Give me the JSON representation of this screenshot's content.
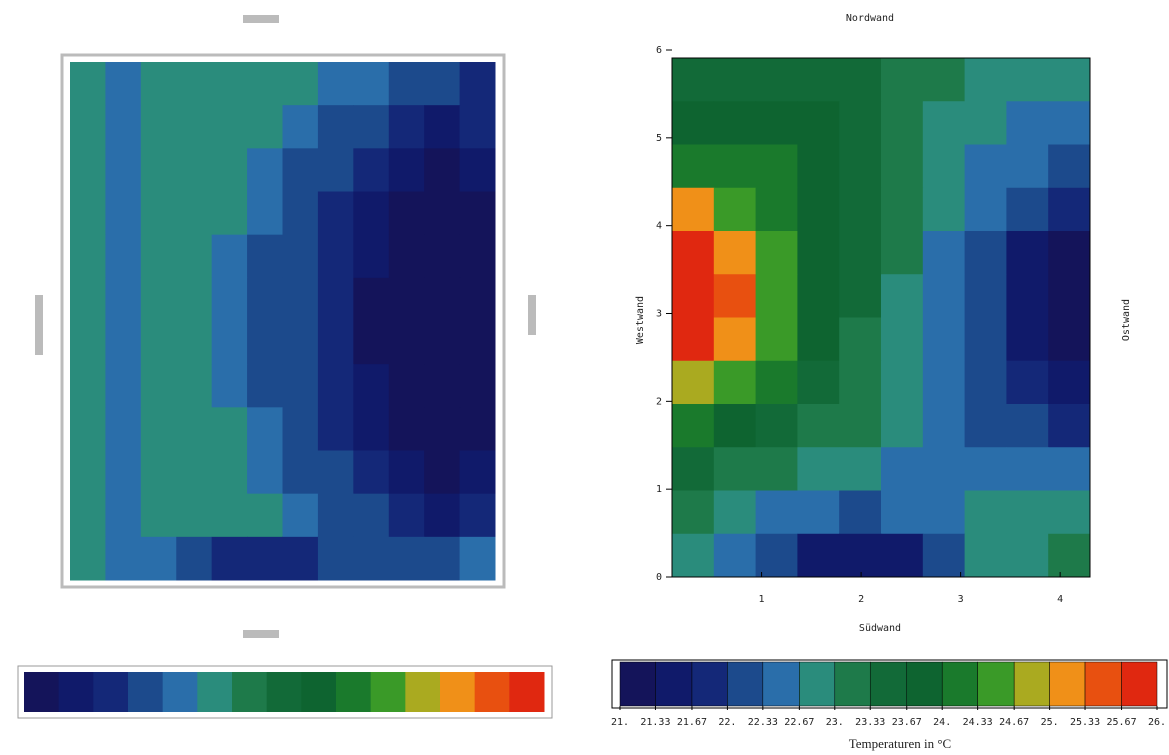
{
  "chart_data": [
    {
      "type": "heatmap",
      "z": [
        [
          22.7,
          22.6,
          22.7,
          22.7,
          22.7,
          22.7,
          22.7,
          22.6,
          22.4,
          22.2,
          22.0,
          21.9
        ],
        [
          22.8,
          22.5,
          22.7,
          22.7,
          22.7,
          22.7,
          22.5,
          22.3,
          22.1,
          21.8,
          21.6,
          21.7
        ],
        [
          22.8,
          22.5,
          22.8,
          22.7,
          22.7,
          22.6,
          22.3,
          22.1,
          21.8,
          21.5,
          21.3,
          21.4
        ],
        [
          22.8,
          22.5,
          22.8,
          22.7,
          22.7,
          22.4,
          22.2,
          21.9,
          21.6,
          21.3,
          21.1,
          21.2
        ],
        [
          22.8,
          22.5,
          22.8,
          22.7,
          22.6,
          22.3,
          22.1,
          21.8,
          21.4,
          21.2,
          21.0,
          21.1
        ],
        [
          22.8,
          22.5,
          22.8,
          22.7,
          22.6,
          22.3,
          22.0,
          21.7,
          21.3,
          21.1,
          21.0,
          21.1
        ],
        [
          22.8,
          22.5,
          22.8,
          22.7,
          22.6,
          22.3,
          22.0,
          21.7,
          21.3,
          21.1,
          21.0,
          21.1
        ],
        [
          22.8,
          22.5,
          22.8,
          22.7,
          22.6,
          22.3,
          22.1,
          21.8,
          21.4,
          21.2,
          21.0,
          21.1
        ],
        [
          22.8,
          22.5,
          22.8,
          22.7,
          22.7,
          22.4,
          22.2,
          21.9,
          21.6,
          21.3,
          21.1,
          21.2
        ],
        [
          22.8,
          22.5,
          22.8,
          22.7,
          22.7,
          22.6,
          22.3,
          22.1,
          21.8,
          21.5,
          21.3,
          21.4
        ],
        [
          22.8,
          22.5,
          22.7,
          22.7,
          22.7,
          22.7,
          22.5,
          22.3,
          22.1,
          21.8,
          21.6,
          21.7
        ],
        [
          22.7,
          22.5,
          22.4,
          22.1,
          21.9,
          21.8,
          21.9,
          22.0,
          22.2,
          22.3,
          22.3,
          22.4
        ]
      ]
    },
    {
      "type": "contour",
      "title": "Nordwand",
      "xlabel": "Südwand",
      "ylabel": "Westwand",
      "right_label": "Ostwand",
      "xlim": [
        0.1,
        4.3
      ],
      "xticks": [
        1,
        2,
        3,
        4
      ],
      "ylim": [
        0,
        6
      ],
      "yticks": [
        0,
        1,
        2,
        3,
        4,
        5,
        6
      ],
      "z": [
        [
          23.5,
          23.6,
          23.6,
          23.5,
          23.4,
          23.3,
          23.0,
          22.8,
          22.7,
          22.7
        ],
        [
          23.7,
          23.8,
          23.8,
          23.7,
          23.5,
          23.2,
          22.9,
          22.7,
          22.6,
          22.5
        ],
        [
          24.0,
          24.1,
          24.0,
          23.8,
          23.5,
          23.1,
          22.8,
          22.6,
          22.4,
          22.2
        ],
        [
          25.0,
          24.6,
          24.2,
          23.8,
          23.4,
          23.0,
          22.7,
          22.4,
          22.0,
          21.7
        ],
        [
          26.2,
          25.3,
          24.5,
          23.9,
          23.4,
          23.0,
          22.6,
          22.2,
          21.6,
          21.3
        ],
        [
          26.5,
          25.5,
          24.6,
          23.9,
          23.4,
          22.9,
          22.5,
          22.1,
          21.5,
          21.2
        ],
        [
          26.3,
          25.3,
          24.5,
          23.8,
          23.3,
          22.9,
          22.5,
          22.1,
          21.5,
          21.2
        ],
        [
          24.8,
          24.4,
          24.0,
          23.6,
          23.2,
          22.8,
          22.5,
          22.2,
          21.7,
          21.4
        ],
        [
          24.0,
          23.8,
          23.6,
          23.3,
          23.0,
          22.7,
          22.5,
          22.3,
          22.0,
          21.8
        ],
        [
          23.4,
          23.3,
          23.1,
          22.9,
          22.7,
          22.6,
          22.5,
          22.4,
          22.4,
          22.5
        ],
        [
          23.0,
          22.9,
          22.6,
          22.4,
          22.3,
          22.4,
          22.6,
          22.8,
          22.8,
          22.9
        ],
        [
          22.8,
          22.6,
          22.0,
          21.5,
          21.4,
          21.6,
          22.3,
          22.7,
          22.9,
          23.0
        ]
      ],
      "colorbar": {
        "label": "Temperaturen in °C",
        "ticks": [
          {
            "value": 21,
            "label": "21."
          },
          21.33,
          21.67,
          {
            "value": 22,
            "label": "22."
          },
          22.33,
          22.67,
          {
            "value": 23,
            "label": "23."
          },
          23.33,
          23.67,
          {
            "value": 24,
            "label": "24."
          },
          24.33,
          24.67,
          {
            "value": 25,
            "label": "25."
          },
          25.33,
          25.67,
          {
            "value": 26,
            "label": "26."
          }
        ],
        "colors": [
          "#14145a",
          "#101a6a",
          "#142878",
          "#1c4a8c",
          "#2a6eaa",
          "#2a8c7c",
          "#1e7a4a",
          "#126a38",
          "#0e6430",
          "#1a7a2c",
          "#3a9a28",
          "#aaaa20",
          "#f09018",
          "#e85010",
          "#e02810"
        ]
      }
    }
  ]
}
